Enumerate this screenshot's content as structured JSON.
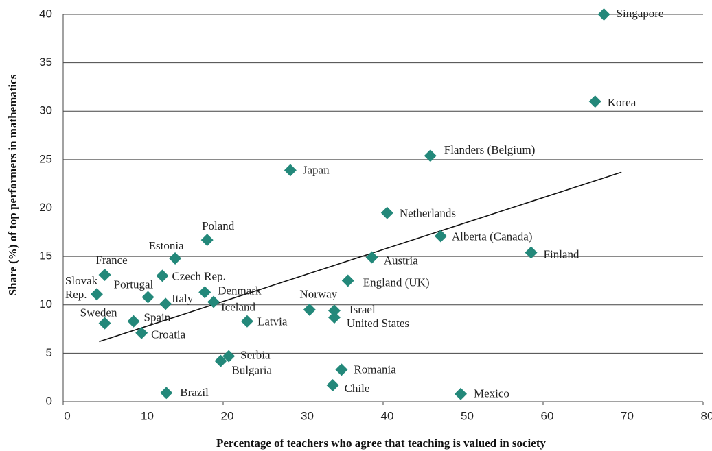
{
  "chart_data": {
    "type": "scatter",
    "xlabel": "Percentage of teachers who agree that teaching is valued in society",
    "ylabel": "Share (%) of top performers in mathematics",
    "xlim": [
      0,
      80
    ],
    "xticks": [
      0,
      10,
      20,
      30,
      40,
      50,
      60,
      70,
      80
    ],
    "ylim": [
      0,
      40
    ],
    "yticks": [
      0,
      5,
      10,
      15,
      20,
      25,
      30,
      35,
      40
    ],
    "grid": true,
    "color": "#23887a",
    "point_labels": [
      "Singapore",
      "Korea",
      "Flanders (Belgium)",
      "Japan",
      "Netherlands",
      "Alberta (Canada)",
      "Finland",
      "Austria",
      "England (UK)",
      "Poland",
      "Estonia",
      "France",
      "Czech Rep.",
      "Slovak Rep.",
      "Portugal",
      "Italy",
      "Denmark",
      "Iceland",
      "Norway",
      "Israel",
      "United States",
      "Latvia",
      "Sweden",
      "Spain",
      "Croatia",
      "Serbia",
      "Bulgaria",
      "Romania",
      "Chile",
      "Brazil",
      "Mexico"
    ],
    "x": [
      67.6,
      66.5,
      45.9,
      28.4,
      40.5,
      47.2,
      58.5,
      38.6,
      35.6,
      18.0,
      14.0,
      5.2,
      12.4,
      4.2,
      10.6,
      12.8,
      17.7,
      18.8,
      30.8,
      33.9,
      33.9,
      23.0,
      5.2,
      8.8,
      9.8,
      20.7,
      19.7,
      34.8,
      33.7,
      12.9,
      49.7
    ],
    "values": [
      40.0,
      31.0,
      25.4,
      23.9,
      19.5,
      17.1,
      15.4,
      14.9,
      12.5,
      16.7,
      14.8,
      13.1,
      13.0,
      11.1,
      10.8,
      10.1,
      11.3,
      10.3,
      9.5,
      9.4,
      8.7,
      8.3,
      8.1,
      8.3,
      7.1,
      4.7,
      4.2,
      3.3,
      1.7,
      0.9,
      0.8
    ],
    "trendline": {
      "x": [
        4.5,
        69.8
      ],
      "values": [
        6.2,
        23.7
      ]
    }
  }
}
